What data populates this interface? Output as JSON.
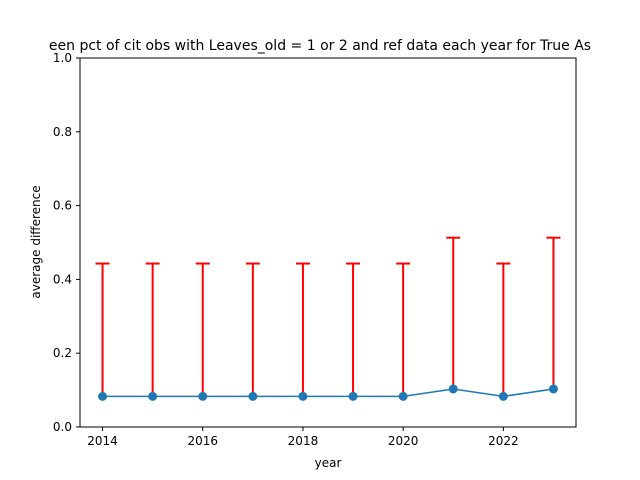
{
  "chart_data": {
    "type": "line",
    "title": "een pct of cit obs with Leaves_old = 1 or 2 and ref data each year for True As",
    "xlabel": "year",
    "ylabel": "average difference",
    "xlim": [
      2013.55,
      2023.45
    ],
    "ylim": [
      0.0,
      1.0
    ],
    "xticks": [
      2014,
      2016,
      2018,
      2020,
      2022
    ],
    "yticks": [
      0.0,
      0.2,
      0.4,
      0.6,
      0.8,
      1.0
    ],
    "xtick_labels": [
      "2014",
      "2016",
      "2018",
      "2020",
      "2022"
    ],
    "ytick_labels": [
      "0.0",
      "0.2",
      "0.4",
      "0.6",
      "0.8",
      "1.0"
    ],
    "grid": false,
    "series": [
      {
        "x": [
          2014,
          2015,
          2016,
          2017,
          2018,
          2019,
          2020,
          2021,
          2022,
          2023
        ],
        "y": [
          0.083,
          0.083,
          0.083,
          0.083,
          0.083,
          0.083,
          0.083,
          0.103,
          0.083,
          0.103
        ],
        "error_lower": [
          0.0,
          0.0,
          0.0,
          0.0,
          0.0,
          0.0,
          0.0,
          0.0,
          0.0,
          0.0
        ],
        "error_upper": [
          0.36,
          0.36,
          0.36,
          0.36,
          0.36,
          0.36,
          0.36,
          0.41,
          0.36,
          0.41
        ],
        "color": "#1f77b4",
        "error_color": "#ff0000"
      }
    ]
  }
}
